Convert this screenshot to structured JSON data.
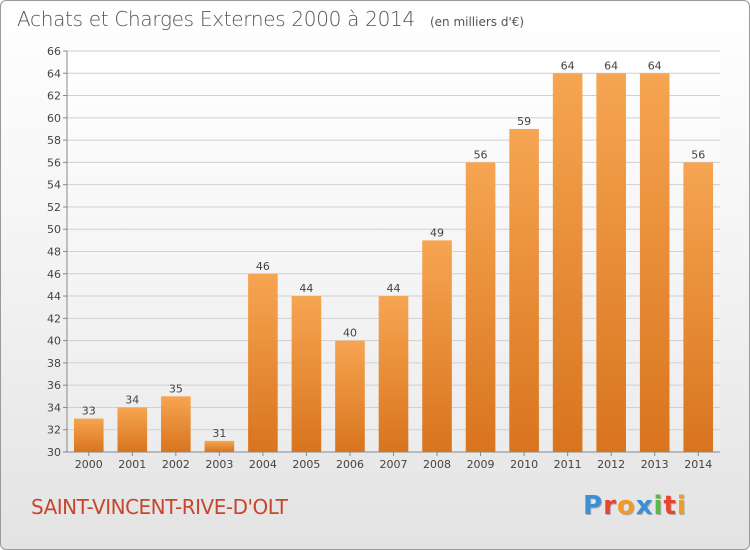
{
  "header": {
    "title": "Achats et Charges Externes 2000 à 2014",
    "subtitle": "(en milliers d'€)"
  },
  "footer": {
    "commune": "SAINT-VINCENT-RIVE-D'OLT",
    "logo_text": "Proxiti",
    "logo_colors": [
      "#3a8fd6",
      "#e8442e",
      "#f19a2a",
      "#3a8fd6",
      "#58b947",
      "#e8442e",
      "#f19a2a"
    ]
  },
  "colors": {
    "bar_top": "#f6a552",
    "bar_bottom": "#d9741e",
    "grid": "#d0d0d0",
    "axis_text": "#444444",
    "label_text": "#444444",
    "title_text": "#555555",
    "commune_text": "#c8462c"
  },
  "chart_data": {
    "type": "bar",
    "categories": [
      "2000",
      "2001",
      "2002",
      "2003",
      "2004",
      "2005",
      "2006",
      "2007",
      "2008",
      "2009",
      "2010",
      "2011",
      "2012",
      "2013",
      "2014"
    ],
    "values": [
      33,
      34,
      35,
      31,
      46,
      44,
      40,
      44,
      49,
      56,
      59,
      64,
      64,
      64,
      56
    ],
    "ylim": [
      30,
      66
    ],
    "yticks": [
      30,
      32,
      34,
      36,
      38,
      40,
      42,
      44,
      46,
      48,
      50,
      52,
      54,
      56,
      58,
      60,
      62,
      64,
      66
    ],
    "grid": true,
    "data_labels": true,
    "xlabel": "",
    "ylabel": ""
  }
}
